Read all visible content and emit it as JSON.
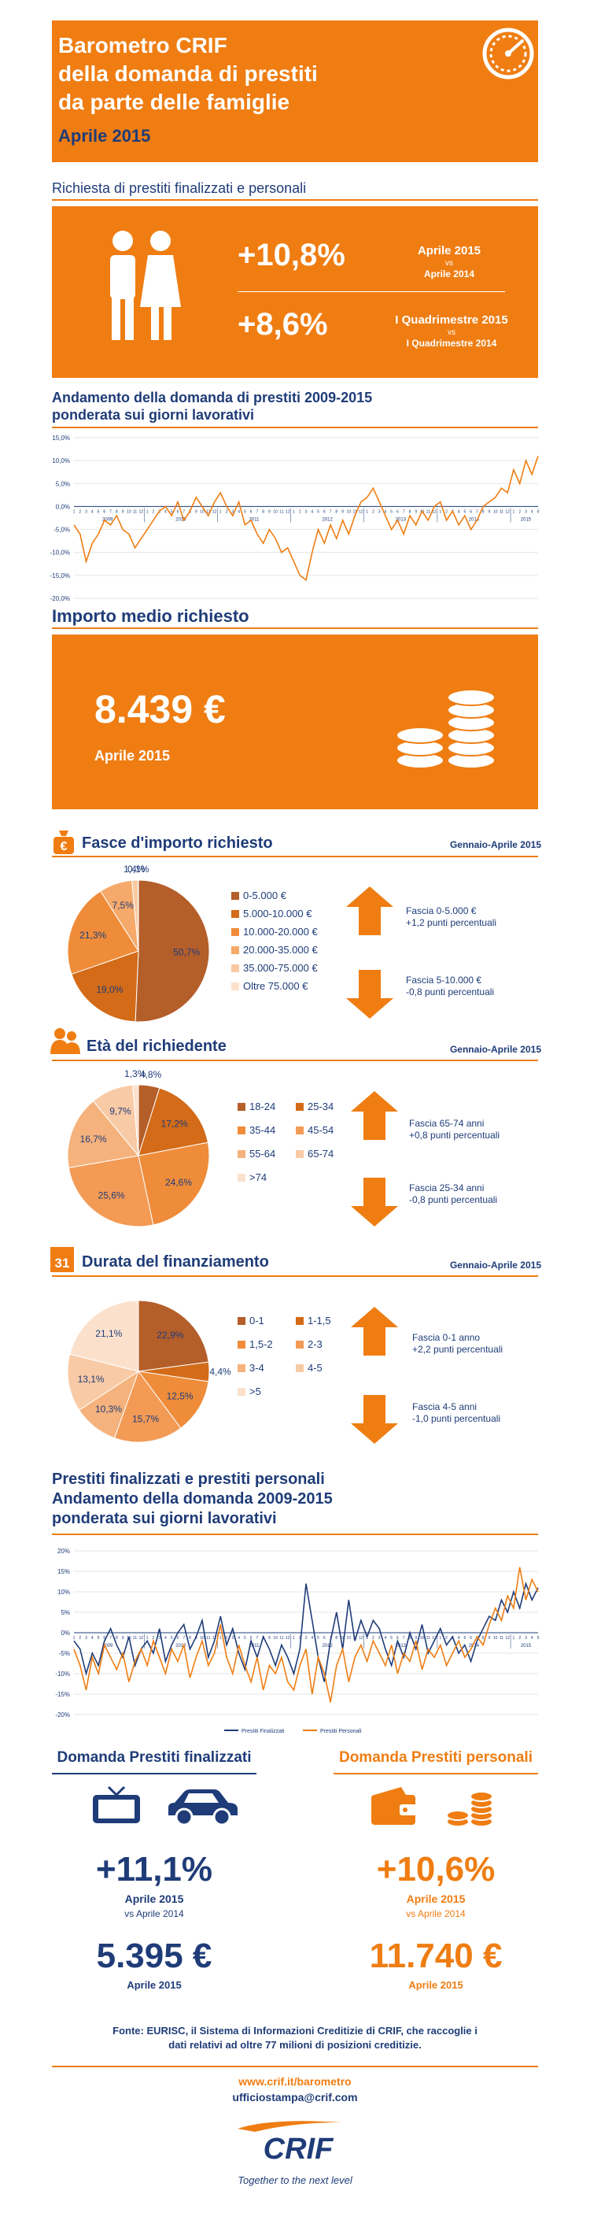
{
  "header": {
    "line1": "Barometro CRIF",
    "line2": "della domanda di prestiti",
    "line3": "da parte delle famiglie",
    "date": "Aprile 2015"
  },
  "colors": {
    "orange": "#ef7d12",
    "navy": "#1f3c78",
    "brown": "#b45e2a"
  },
  "richiesta": {
    "title": "Richiesta di prestiti finalizzati e personali",
    "val1": "+10,8%",
    "cmp1_a": "Aprile 2015",
    "cmp1_b": "vs",
    "cmp1_c": "Aprile 2014",
    "val2": "+8,6%",
    "cmp2_a": "I Quadrimestre 2015",
    "cmp2_b": "vs",
    "cmp2_c": "I Quadrimestre 2014"
  },
  "andamento": {
    "title_line1": "Andamento della domanda di prestiti 2009-2015",
    "title_line2": "ponderata sui giorni lavorativi"
  },
  "importo": {
    "title": "Importo medio richiesto",
    "value": "8.439 €",
    "period": "Aprile 2015"
  },
  "fasce": {
    "title": "Fasce d'importo richiesto",
    "period": "Gennaio-Aprile 2015",
    "up_line1": "Fascia 0-5.000 €",
    "up_line2": "+1,2 punti percentuali",
    "down_line1": "Fascia 5-10.000 €",
    "down_line2": "-0,8 punti percentuali"
  },
  "eta": {
    "title": "Età del richiedente",
    "period": "Gennaio-Aprile 2015",
    "up_line1": "Fascia 65-74 anni",
    "up_line2": "+0,8 punti percentuali",
    "down_line1": "Fascia 25-34 anni",
    "down_line2": "-0,8 punti percentuali"
  },
  "durata": {
    "title": "Durata del finanziamento",
    "calendar_number": "31",
    "period": "Gennaio-Aprile 2015",
    "up_line1": "Fascia 0-1 anno",
    "up_line2": "+2,2 punti percentuali",
    "down_line1": "Fascia 4-5 anni",
    "down_line2": "-1,0 punti percentuali"
  },
  "prestiti": {
    "title_line1": "Prestiti finalizzati e prestiti personali",
    "title_line2": "Andamento della domanda 2009-2015",
    "title_line3": "ponderata sui giorni lavorativi"
  },
  "domanda_finalizzati": {
    "title": "Domanda Prestiti finalizzati",
    "pct": "+11,1%",
    "pct_period": "Aprile 2015",
    "pct_vs": "vs Aprile 2014",
    "amount": "5.395 €",
    "amount_period": "Aprile 2015"
  },
  "domanda_personali": {
    "title": "Domanda Prestiti personali",
    "pct": "+10,6%",
    "pct_period": "Aprile 2015",
    "pct_vs": "vs Aprile 2014",
    "amount": "11.740 €",
    "amount_period": "Aprile 2015"
  },
  "footer": {
    "source_line1": "Fonte: EURISC, il Sistema di Informazioni Creditizie di CRIF, che raccoglie i",
    "source_line2": "dati relativi ad oltre 77 milioni di posizioni creditizie.",
    "url": "www.crif.it/barometro",
    "email": "ufficiostampa@crif.com",
    "logo": "CRIF",
    "tagline": "Together to the next level"
  },
  "chart_data": [
    {
      "type": "line",
      "title": "Andamento della domanda di prestiti 2009-2015",
      "ylim": [
        -20,
        15
      ],
      "yticks": [
        "15,0%",
        "10,0%",
        "5,0%",
        "0,0%",
        "-5,0%",
        "-10,0%",
        "-15,0%",
        "-20,0%"
      ],
      "years": [
        "2009",
        "2010",
        "2011",
        "2012",
        "2013",
        "2014",
        "2015"
      ],
      "series": [
        {
          "values": [
            -4,
            -6,
            -12,
            -8,
            -6,
            -3,
            -4,
            -2,
            -5,
            -6,
            -9,
            -7,
            -5,
            -3,
            -1,
            0,
            -2,
            1,
            -3,
            -1,
            2,
            0,
            -2,
            1,
            3,
            0,
            -2,
            1,
            -4,
            -3,
            -6,
            -8,
            -5,
            -7,
            -10,
            -9,
            -12,
            -15,
            -16,
            -10,
            -5,
            -8,
            -4,
            -7,
            -3,
            -6,
            -2,
            1,
            2,
            4,
            1,
            -2,
            -5,
            -3,
            -6,
            -2,
            -4,
            -1,
            -3,
            0,
            1,
            -3,
            -1,
            -4,
            -2,
            -5,
            -3,
            0,
            1,
            2,
            4,
            3,
            8,
            5,
            10,
            7,
            11
          ]
        }
      ]
    },
    {
      "type": "pie",
      "title": "Fasce d'importo richiesto",
      "categories": [
        "0-5.000 €",
        "5.000-10.000 €",
        "10.000-20.000 €",
        "20.000-35.000 €",
        "35.000-75.000 €",
        "Oltre 75.000 €"
      ],
      "values": [
        50.7,
        19.0,
        21.3,
        7.5,
        1.4,
        0.1
      ],
      "labels": [
        "50,7%",
        "19,0%",
        "21,3%",
        "7,5%",
        "1,4%",
        "0,1%"
      ],
      "colors": [
        "#b45e2a",
        "#d36b18",
        "#ef8c3a",
        "#f5a96a",
        "#f8c9a2",
        "#fbe1cc"
      ]
    },
    {
      "type": "pie",
      "title": "Età del richiedente",
      "categories": [
        "18-24",
        "25-34",
        "35-44",
        "45-54",
        "55-64",
        "65-74",
        ">74"
      ],
      "values": [
        4.8,
        17.2,
        24.6,
        25.6,
        16.7,
        9.7,
        1.3
      ],
      "labels": [
        "4,8%",
        "17,2%",
        "24,6%",
        "25,6%",
        "16,7%",
        "9,7%",
        "1,3%"
      ],
      "colors": [
        "#b45e2a",
        "#d36b18",
        "#ef8c3a",
        "#f39a55",
        "#f5b27c",
        "#f8caa5",
        "#fbe1cc"
      ]
    },
    {
      "type": "pie",
      "title": "Durata del finanziamento",
      "categories": [
        "0-1",
        "1-1,5",
        "1,5-2",
        "2-3",
        "3-4",
        "4-5",
        ">5"
      ],
      "values": [
        22.9,
        4.4,
        12.5,
        15.7,
        10.3,
        13.1,
        21.1
      ],
      "labels": [
        "22,9%",
        "4,4%",
        "12,5%",
        "15,7%",
        "10,3%",
        "13,1%",
        "21,1%"
      ],
      "colors": [
        "#b45e2a",
        "#d36b18",
        "#ef8c3a",
        "#f39a55",
        "#f5b27c",
        "#f8caa5",
        "#fbe1cc"
      ]
    },
    {
      "type": "line",
      "title": "Prestiti finalizzati e prestiti personali",
      "ylim": [
        -20,
        20
      ],
      "yticks": [
        "20%",
        "15%",
        "10%",
        "5%",
        "0%",
        "-5%",
        "-10%",
        "-15%",
        "-20%"
      ],
      "years": [
        "2009",
        "2010",
        "2011",
        "2012",
        "2013",
        "2014",
        "2015"
      ],
      "series": [
        {
          "name": "Prestiti Finalizzati",
          "color": "#1f3c78",
          "values": [
            -2,
            -4,
            -10,
            -5,
            -8,
            -2,
            1,
            -3,
            -6,
            -1,
            -8,
            -4,
            -2,
            -5,
            1,
            -7,
            -3,
            0,
            2,
            -4,
            -1,
            3,
            -6,
            -2,
            4,
            -3,
            1,
            -5,
            -9,
            -2,
            -6,
            -1,
            -4,
            -8,
            -3,
            -6,
            -10,
            -4,
            12,
            3,
            -6,
            -12,
            -2,
            5,
            -4,
            8,
            -2,
            3,
            -1,
            3,
            1,
            -4,
            -8,
            -2,
            -6,
            0,
            -4,
            2,
            -5,
            -2,
            1,
            -3,
            -1,
            -5,
            -3,
            -7,
            -2,
            1,
            4,
            3,
            8,
            5,
            10,
            6,
            12,
            8,
            11
          ]
        },
        {
          "name": "Prestiti Personali",
          "color": "#ef7d12",
          "values": [
            -4,
            -8,
            -14,
            -6,
            -10,
            -3,
            -6,
            -9,
            -5,
            -12,
            -7,
            -4,
            -8,
            -2,
            -6,
            -10,
            -4,
            -7,
            -3,
            -11,
            -6,
            -2,
            -8,
            -5,
            2,
            -6,
            -10,
            -3,
            -8,
            -12,
            -6,
            -14,
            -8,
            -10,
            -6,
            -12,
            -14,
            -8,
            -4,
            -15,
            -6,
            -10,
            -17,
            -8,
            -4,
            -12,
            -6,
            -3,
            -7,
            -2,
            -5,
            -8,
            -3,
            -10,
            -5,
            -7,
            -2,
            -9,
            -4,
            -6,
            -3,
            -8,
            -5,
            -2,
            -6,
            -4,
            -1,
            -3,
            2,
            6,
            3,
            9,
            6,
            16,
            8,
            13,
            10
          ]
        }
      ]
    }
  ]
}
